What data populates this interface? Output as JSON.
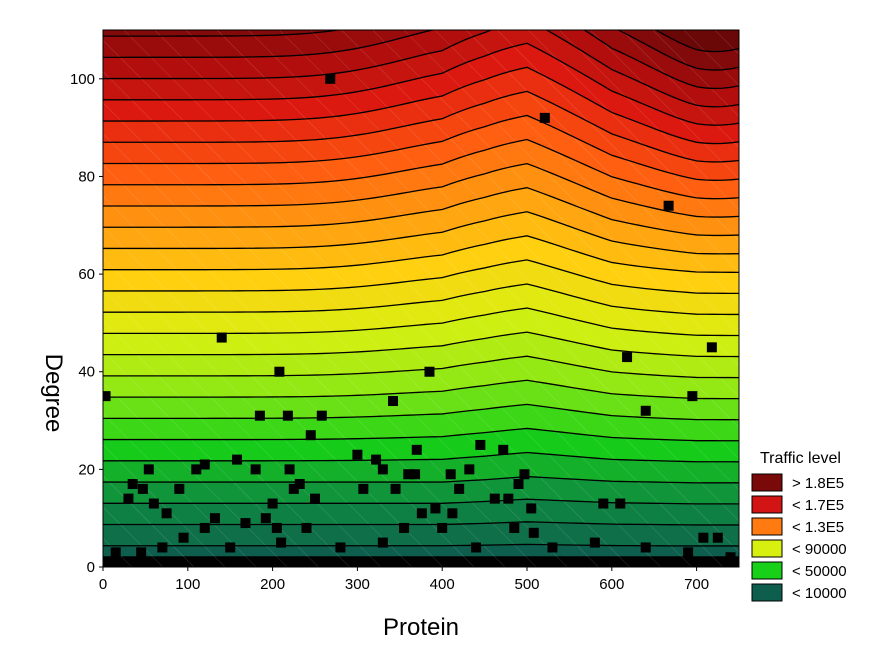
{
  "chart_data": {
    "type": "contour",
    "xlabel": "Protein",
    "ylabel": "Degree",
    "xlim": [
      0,
      750
    ],
    "ylim": [
      0,
      110
    ],
    "x_ticks": [
      "0",
      "100",
      "200",
      "300",
      "400",
      "500",
      "600",
      "700"
    ],
    "y_ticks": [
      "0",
      "20",
      "40",
      "60",
      "80",
      "100"
    ],
    "legend_title": "Traffic level",
    "legend": [
      {
        "label": "> 1.8E5",
        "color": "#7a0a0a"
      },
      {
        "label": "< 1.7E5",
        "color": "#d21414"
      },
      {
        "label": "< 1.3E5",
        "color": "#ff7a10"
      },
      {
        "label": "< 90000",
        "color": "#d8f010"
      },
      {
        "label": "< 50000",
        "color": "#18d018"
      },
      {
        "label": "< 10000",
        "color": "#0e5e4e"
      }
    ],
    "contour_anchors": [
      {
        "x": 0,
        "y": 0
      },
      {
        "x": 100,
        "y": 0
      },
      {
        "x": 200,
        "y": 0
      },
      {
        "x": 300,
        "y": 0
      },
      {
        "x": 400,
        "y": 0
      },
      {
        "x": 450,
        "y": 0
      },
      {
        "x": 500,
        "y": 0
      },
      {
        "x": 600,
        "y": 0
      },
      {
        "x": 700,
        "y": 0
      },
      {
        "x": 750,
        "y": 0
      }
    ],
    "contour_level_spacing_degree": [
      4.3,
      4.3,
      4.3,
      4.3,
      4.3,
      4.6,
      5.0,
      4.4,
      4.2,
      4.2
    ],
    "contour_level_count": 26,
    "points": [
      {
        "x": 3,
        "y": 35
      },
      {
        "x": 268,
        "y": 100
      },
      {
        "x": 521,
        "y": 92
      },
      {
        "x": 667,
        "y": 74
      },
      {
        "x": 140,
        "y": 47
      },
      {
        "x": 208,
        "y": 40
      },
      {
        "x": 385,
        "y": 40
      },
      {
        "x": 342,
        "y": 34
      },
      {
        "x": 618,
        "y": 43
      },
      {
        "x": 718,
        "y": 45
      },
      {
        "x": 640,
        "y": 32
      },
      {
        "x": 695,
        "y": 35
      },
      {
        "x": 185,
        "y": 31
      },
      {
        "x": 218,
        "y": 31
      },
      {
        "x": 258,
        "y": 31
      },
      {
        "x": 245,
        "y": 27
      },
      {
        "x": 370,
        "y": 24
      },
      {
        "x": 445,
        "y": 25
      },
      {
        "x": 472,
        "y": 24
      },
      {
        "x": 158,
        "y": 22
      },
      {
        "x": 120,
        "y": 21
      },
      {
        "x": 110,
        "y": 20
      },
      {
        "x": 54,
        "y": 20
      },
      {
        "x": 180,
        "y": 20
      },
      {
        "x": 220,
        "y": 20
      },
      {
        "x": 300,
        "y": 23
      },
      {
        "x": 322,
        "y": 22
      },
      {
        "x": 330,
        "y": 20
      },
      {
        "x": 410,
        "y": 19
      },
      {
        "x": 432,
        "y": 20
      },
      {
        "x": 490,
        "y": 17
      },
      {
        "x": 497,
        "y": 19
      },
      {
        "x": 35,
        "y": 17
      },
      {
        "x": 47,
        "y": 16
      },
      {
        "x": 30,
        "y": 14
      },
      {
        "x": 60,
        "y": 13
      },
      {
        "x": 75,
        "y": 11
      },
      {
        "x": 90,
        "y": 16
      },
      {
        "x": 132,
        "y": 10
      },
      {
        "x": 192,
        "y": 10
      },
      {
        "x": 200,
        "y": 13
      },
      {
        "x": 225,
        "y": 16
      },
      {
        "x": 232,
        "y": 17
      },
      {
        "x": 250,
        "y": 14
      },
      {
        "x": 307,
        "y": 16
      },
      {
        "x": 345,
        "y": 16
      },
      {
        "x": 360,
        "y": 19
      },
      {
        "x": 368,
        "y": 19
      },
      {
        "x": 376,
        "y": 11
      },
      {
        "x": 392,
        "y": 12
      },
      {
        "x": 400,
        "y": 8
      },
      {
        "x": 412,
        "y": 11
      },
      {
        "x": 420,
        "y": 16
      },
      {
        "x": 462,
        "y": 14
      },
      {
        "x": 478,
        "y": 14
      },
      {
        "x": 505,
        "y": 12
      },
      {
        "x": 590,
        "y": 13
      },
      {
        "x": 610,
        "y": 13
      },
      {
        "x": 508,
        "y": 7
      },
      {
        "x": 485,
        "y": 8
      },
      {
        "x": 355,
        "y": 8
      },
      {
        "x": 240,
        "y": 8
      },
      {
        "x": 205,
        "y": 8
      },
      {
        "x": 168,
        "y": 9
      },
      {
        "x": 120,
        "y": 8
      },
      {
        "x": 95,
        "y": 6
      },
      {
        "x": 708,
        "y": 6
      },
      {
        "x": 725,
        "y": 6
      },
      {
        "x": 15,
        "y": 3
      },
      {
        "x": 45,
        "y": 3
      },
      {
        "x": 70,
        "y": 4
      },
      {
        "x": 150,
        "y": 4
      },
      {
        "x": 210,
        "y": 5
      },
      {
        "x": 280,
        "y": 4
      },
      {
        "x": 330,
        "y": 5
      },
      {
        "x": 440,
        "y": 4
      },
      {
        "x": 530,
        "y": 4
      },
      {
        "x": 580,
        "y": 5
      },
      {
        "x": 640,
        "y": 4
      },
      {
        "x": 690,
        "y": 3
      },
      {
        "x": 740,
        "y": 2
      }
    ]
  }
}
